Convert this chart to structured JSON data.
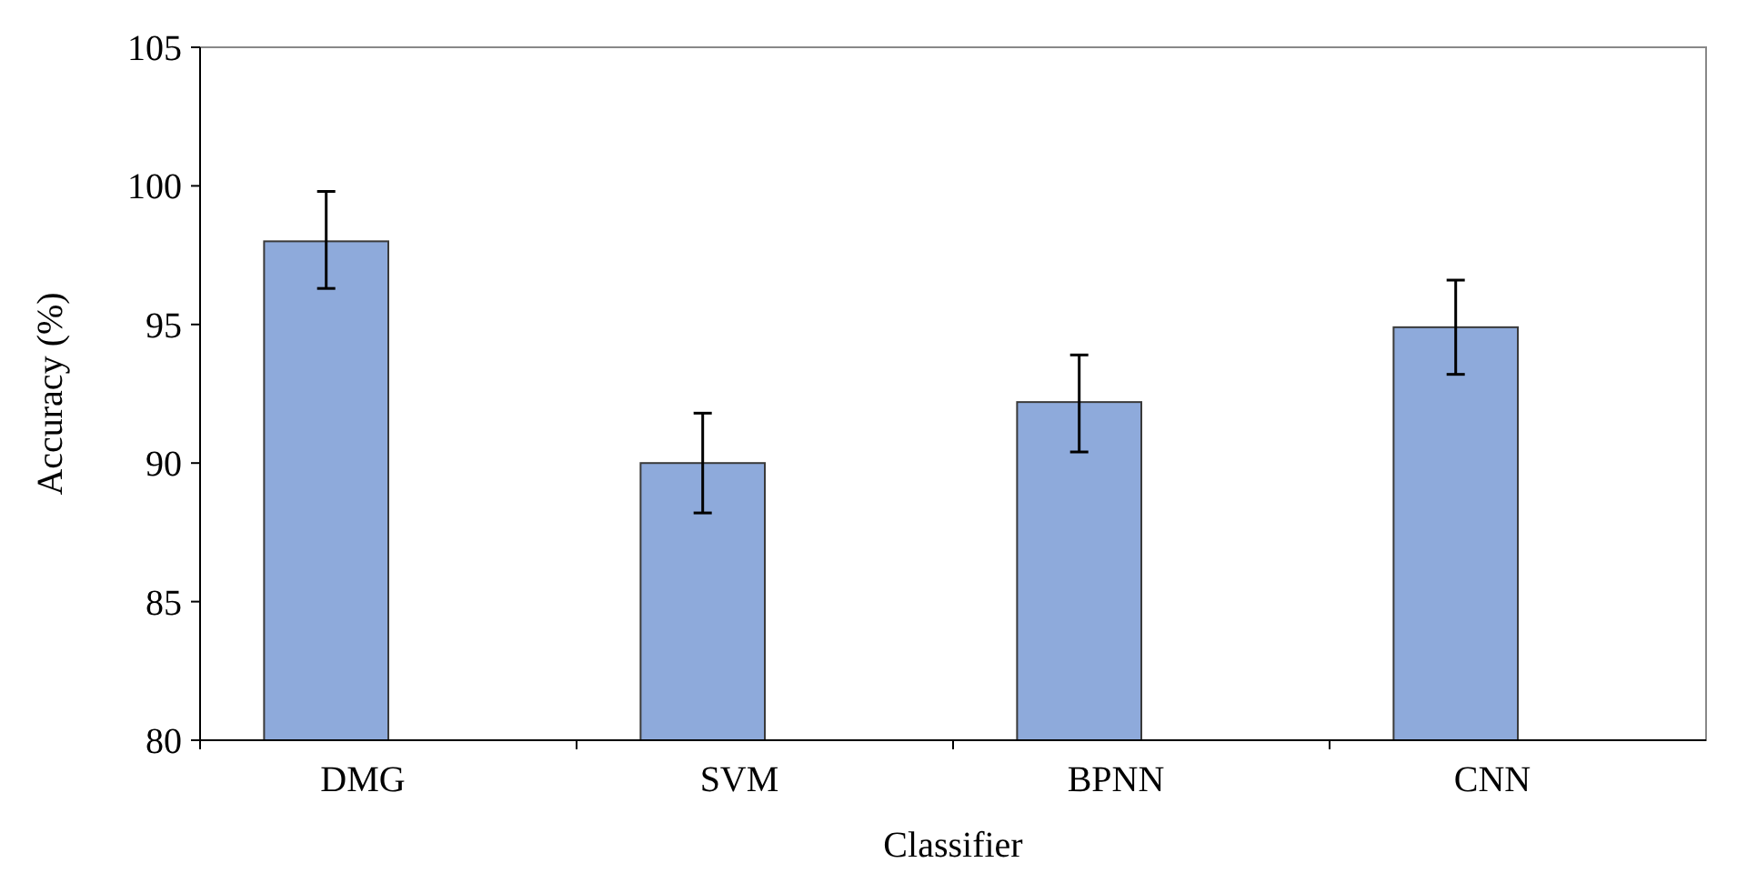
{
  "chart_data": {
    "type": "bar",
    "xlabel": "Classifier",
    "ylabel": "Accuracy (%)",
    "categories": [
      "DMG",
      "SVM",
      "BPNN",
      "CNN"
    ],
    "values": [
      98.0,
      90.0,
      92.2,
      94.9
    ],
    "errors": [
      [
        96.3,
        99.8
      ],
      [
        88.2,
        91.8
      ],
      [
        90.4,
        93.9
      ],
      [
        93.2,
        96.6
      ]
    ],
    "color": "#8eaadb",
    "ylim": [
      80,
      105
    ],
    "yticks": [
      80,
      85,
      90,
      95,
      100,
      105
    ],
    "grid": false
  }
}
